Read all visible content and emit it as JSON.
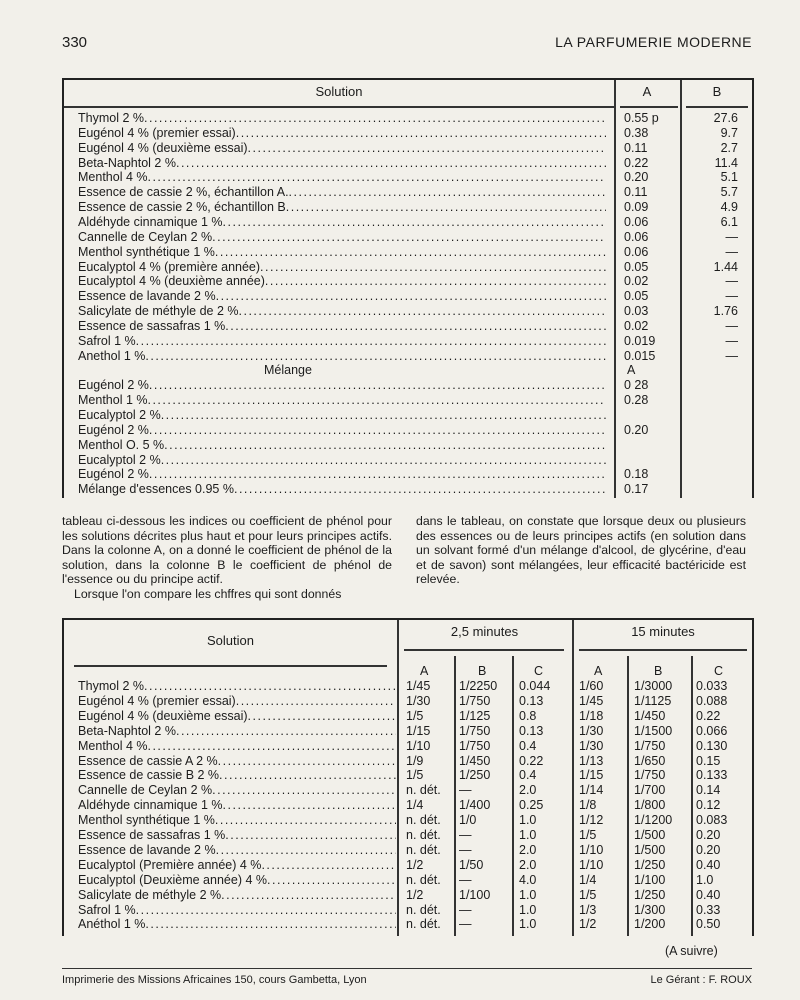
{
  "header": {
    "page_number": "330",
    "journal": "LA PARFUMERIE MODERNE"
  },
  "table1": {
    "headers": {
      "solution": "Solution",
      "a": "A",
      "b": "B"
    },
    "rows": [
      {
        "label": "Thymol 2 %",
        "a": "0.55 p",
        "b": "27.6"
      },
      {
        "label": "Eugénol 4 % (premier essai)",
        "a": "0.38",
        "b": "9.7"
      },
      {
        "label": "Eugénol 4 % (deuxième essai)",
        "a": "0.11",
        "b": "2.7"
      },
      {
        "label": "Beta-Naphtol 2 %",
        "a": "0.22",
        "b": "11.4"
      },
      {
        "label": "Menthol 4 %",
        "a": "0.20",
        "b": "5.1"
      },
      {
        "label": "Essence de cassie 2 %, échantillon A.",
        "a": "0.11",
        "b": "5.7"
      },
      {
        "label": "Essence de cassie 2 %, échantillon B",
        "a": "0.09",
        "b": "4.9"
      },
      {
        "label": "Aldéhyde cinnamique 1 %",
        "a": "0.06",
        "b": "6.1"
      },
      {
        "label": "Cannelle de Ceylan 2 %",
        "a": "0.06",
        "b": "—"
      },
      {
        "label": "Menthol synthétique 1 %",
        "a": "0.06",
        "b": "—"
      },
      {
        "label": "Eucalyptol 4 % (première année)",
        "a": "0.05",
        "b": "1.44"
      },
      {
        "label": "Eucalyptol 4 % (deuxième année)",
        "a": "0.02",
        "b": "—"
      },
      {
        "label": "Essence de lavande 2 %",
        "a": "0.05",
        "b": "—"
      },
      {
        "label": "Salicylate de méthyle de 2 %",
        "a": "0.03",
        "b": "1.76"
      },
      {
        "label": "Essence de sassafras 1 %",
        "a": "0.02",
        "b": "—"
      },
      {
        "label": "Safrol 1 %",
        "a": "0.019",
        "b": "—"
      },
      {
        "label": "Anethol 1 %",
        "a": "0.015",
        "b": "—"
      }
    ],
    "mix_header": {
      "label": "Mélange",
      "a": "A"
    },
    "mix_rows": [
      {
        "label": "Eugénol 2 %",
        "a": "0 28"
      },
      {
        "label": "Menthol 1 %",
        "a": "0.28"
      },
      {
        "label": "Eucalyptol 2 %",
        "a": ""
      },
      {
        "label": "Eugénol 2 %",
        "a": "0.20"
      },
      {
        "label": "Menthol O. 5 %",
        "a": ""
      },
      {
        "label": "Eucalyptol 2 %",
        "a": ""
      },
      {
        "label": "Eugénol 2 %",
        "a": "0.18"
      },
      {
        "label": "Mélange d'essences 0.95 %",
        "a": "0.17"
      }
    ]
  },
  "paragraphs": {
    "left": "tableau ci-dessous les indices ou coefficient de phénol pour les solutions décrites plus haut et pour leurs principes actifs. Dans la colonne A, on a donné le coefficient de phénol de la solution, dans la colonne B le coefficient de phénol de l'essence ou du principe actif.",
    "left2": "Lorsque l'on compare les chffres qui sont donnés",
    "right": "dans le tableau, on constate que lorsque deux ou plusieurs des essences ou de leurs principes actifs (en solution dans un solvant formé d'un mélange d'alcool, de glycérine, d'eau et de savon) sont mélangées, leur efficacité bactéricide est relevée."
  },
  "table2": {
    "headers": {
      "solution": "Solution",
      "group1": "2,5 minutes",
      "group2": "15 minutes",
      "a": "A",
      "b": "B",
      "c": "C"
    },
    "rows": [
      {
        "label": "Thymol 2 %",
        "a1": "1/45",
        "b1": "1/2250",
        "c1": "0.044",
        "a2": "1/60",
        "b2": "1/3000",
        "c2": "0.033"
      },
      {
        "label": "Eugénol 4 % (premier essai)",
        "a1": "1/30",
        "b1": "1/750",
        "c1": "0.13",
        "a2": "1/45",
        "b2": "1/1125",
        "c2": "0.088"
      },
      {
        "label": "Eugénol 4 % (deuxième essai)",
        "a1": "1/5",
        "b1": "1/125",
        "c1": "0.8",
        "a2": "1/18",
        "b2": "1/450",
        "c2": "0.22"
      },
      {
        "label": "Beta-Naphtol 2 %",
        "a1": "1/15",
        "b1": "1/750",
        "c1": "0.13",
        "a2": "1/30",
        "b2": "1/1500",
        "c2": "0.066"
      },
      {
        "label": "Menthol 4 %",
        "a1": "1/10",
        "b1": "1/750",
        "c1": "0.4",
        "a2": "1/30",
        "b2": "1/750",
        "c2": "0.130"
      },
      {
        "label": "Essence de cassie A 2 %",
        "a1": "1/9",
        "b1": "1/450",
        "c1": "0.22",
        "a2": "1/13",
        "b2": "1/650",
        "c2": "0.15"
      },
      {
        "label": "Essence de cassie B 2 %",
        "a1": "1/5",
        "b1": "1/250",
        "c1": "0.4",
        "a2": "1/15",
        "b2": "1/750",
        "c2": "0.133"
      },
      {
        "label": "Cannelle de Ceylan 2 %",
        "a1": "n. dét.",
        "b1": "—",
        "c1": "2.0",
        "a2": "1/14",
        "b2": "1/700",
        "c2": "0.14"
      },
      {
        "label": "Aldéhyde cinnamique 1 %",
        "a1": "1/4",
        "b1": "1/400",
        "c1": "0.25",
        "a2": "1/8",
        "b2": "1/800",
        "c2": "0.12"
      },
      {
        "label": "Menthol synthétique 1 %",
        "a1": "n. dét.",
        "b1": "1/0",
        "c1": "1.0",
        "a2": "1/12",
        "b2": "1/1200",
        "c2": "0.083"
      },
      {
        "label": "Essence de sassafras 1 %",
        "a1": "n. dét.",
        "b1": "—",
        "c1": "1.0",
        "a2": "1/5",
        "b2": "1/500",
        "c2": "0.20"
      },
      {
        "label": "Essence de lavande 2 %",
        "a1": "n. dét.",
        "b1": "—",
        "c1": "2.0",
        "a2": "1/10",
        "b2": "1/500",
        "c2": "0.20"
      },
      {
        "label": "Eucalyptol (Première année) 4 %",
        "a1": "1/2",
        "b1": "1/50",
        "c1": "2.0",
        "a2": "1/10",
        "b2": "1/250",
        "c2": "0.40"
      },
      {
        "label": "Eucalyptol (Deuxième année) 4 %",
        "a1": "n. dét.",
        "b1": "—",
        "c1": "4.0",
        "a2": "1/4",
        "b2": "1/100",
        "c2": "1.0"
      },
      {
        "label": "Salicylate de méthyle 2 %",
        "a1": "1/2",
        "b1": "1/100",
        "c1": "1.0",
        "a2": "1/5",
        "b2": "1/250",
        "c2": "0.40"
      },
      {
        "label": "Safrol 1 %",
        "a1": "n. dét.",
        "b1": "—",
        "c1": "1.0",
        "a2": "1/3",
        "b2": "1/300",
        "c2": "0.33"
      },
      {
        "label": "Anéthol 1 %",
        "a1": "n. dét.",
        "b1": "—",
        "c1": "1.0",
        "a2": "1/2",
        "b2": "1/200",
        "c2": "0.50"
      }
    ]
  },
  "continued": "(A suivre)",
  "footer": {
    "printer": "Imprimerie des Missions Africaines 150, cours Gambetta, Lyon",
    "manager": "Le Gérant : F. ROUX"
  }
}
